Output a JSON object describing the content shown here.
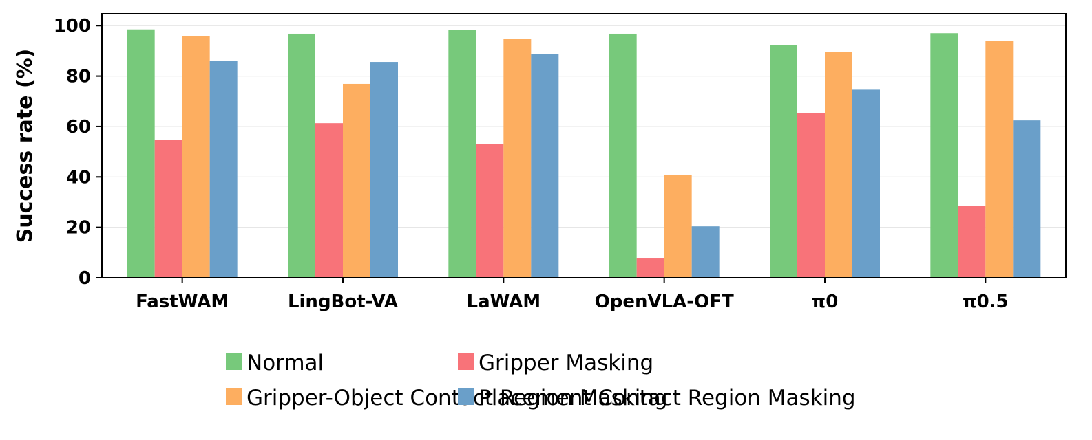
{
  "chart_data": {
    "type": "bar",
    "title": "",
    "xlabel": "",
    "ylabel": "Success rate (%)",
    "ylim": [
      0,
      100
    ],
    "yticks": [
      0,
      20,
      40,
      60,
      80,
      100
    ],
    "grid": "horizontal",
    "legend_placement": "bottom-center",
    "categories": [
      "FastWAM",
      "LingBot-VA",
      "LaWAM",
      "OpenVLA-OFT",
      "π0",
      "π0.5"
    ],
    "series": [
      {
        "name": "Normal",
        "color": "#77c97b",
        "values": [
          98.5,
          96.8,
          98.2,
          96.8,
          92.3,
          97.0
        ]
      },
      {
        "name": "Gripper Masking",
        "color": "#f87379",
        "values": [
          54.6,
          61.3,
          53.1,
          7.9,
          65.3,
          28.6
        ]
      },
      {
        "name": "Gripper-Object Contact Region Masking",
        "color": "#fdae60",
        "values": [
          95.8,
          76.9,
          94.8,
          40.9,
          89.7,
          93.9
        ]
      },
      {
        "name": "Placement Contact Region Masking",
        "color": "#6a9fc9",
        "values": [
          86.1,
          85.6,
          88.7,
          20.4,
          74.6,
          62.4
        ]
      }
    ]
  }
}
